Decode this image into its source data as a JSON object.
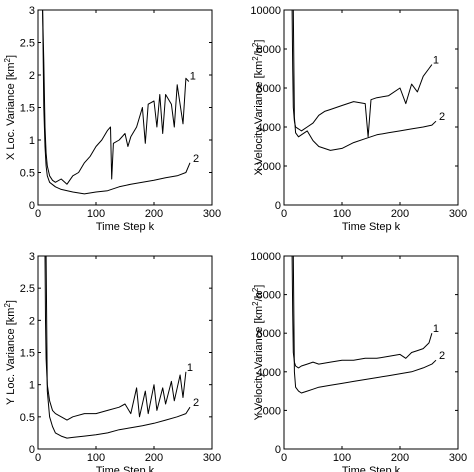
{
  "chart_data": [
    {
      "type": "line",
      "xlabel": "Time Step k",
      "ylabel": "X Loc. Variance [km2]",
      "ylabel_main": "X Loc. Variance [km",
      "ylabel_sup": "2",
      "ylabel_tail": "]",
      "xlim": [
        0,
        300
      ],
      "ylim": [
        0,
        3
      ],
      "xticks": [
        0,
        100,
        200,
        300
      ],
      "yticks": [
        0,
        0.5,
        1,
        1.5,
        2,
        2.5,
        3
      ],
      "xtick_labels": [
        "0",
        "100",
        "200",
        "300"
      ],
      "ytick_labels": [
        "0",
        "0.5",
        "1",
        "1.5",
        "2",
        "2.5",
        "3"
      ],
      "series": [
        {
          "label": "1",
          "x": [
            8,
            10,
            12,
            14,
            16,
            20,
            25,
            30,
            40,
            50,
            60,
            70,
            80,
            90,
            100,
            110,
            120,
            125,
            127,
            130,
            140,
            150,
            155,
            160,
            170,
            180,
            185,
            190,
            200,
            205,
            210,
            215,
            220,
            230,
            235,
            240,
            250,
            255,
            260
          ],
          "y": [
            3.0,
            2.2,
            1.2,
            0.8,
            0.6,
            0.45,
            0.38,
            0.35,
            0.4,
            0.32,
            0.45,
            0.5,
            0.65,
            0.75,
            0.9,
            1.0,
            1.15,
            1.2,
            0.4,
            0.95,
            1.0,
            1.1,
            0.9,
            1.05,
            1.2,
            1.5,
            0.95,
            1.55,
            1.6,
            1.2,
            1.7,
            1.1,
            1.7,
            1.55,
            1.2,
            1.85,
            1.25,
            1.95,
            1.9
          ]
        },
        {
          "label": "2",
          "x": [
            8,
            10,
            12,
            14,
            16,
            20,
            30,
            40,
            60,
            80,
            100,
            120,
            140,
            160,
            180,
            200,
            220,
            240,
            255,
            262
          ],
          "y": [
            3.0,
            1.5,
            0.9,
            0.6,
            0.45,
            0.35,
            0.28,
            0.24,
            0.2,
            0.17,
            0.2,
            0.22,
            0.28,
            0.32,
            0.35,
            0.38,
            0.42,
            0.45,
            0.5,
            0.65
          ]
        }
      ]
    },
    {
      "type": "line",
      "xlabel": "Time Step k",
      "ylabel": "X Velocity Variance [km2/h2]",
      "ylabel_main": "X Velocity Variance [km",
      "ylabel_sup": "2",
      "ylabel_mid": "/h",
      "ylabel_sup2": "2",
      "ylabel_tail": "]",
      "xlim": [
        0,
        300
      ],
      "ylim": [
        0,
        10000
      ],
      "xticks": [
        0,
        100,
        200,
        300
      ],
      "yticks": [
        0,
        2000,
        4000,
        6000,
        8000,
        10000
      ],
      "xtick_labels": [
        "0",
        "100",
        "200",
        "300"
      ],
      "ytick_labels": [
        "0",
        "2000",
        "4000",
        "6000",
        "8000",
        "10000"
      ],
      "series": [
        {
          "label": "1",
          "x": [
            14,
            15,
            16,
            18,
            20,
            25,
            30,
            40,
            50,
            60,
            70,
            80,
            100,
            120,
            140,
            145,
            150,
            160,
            180,
            200,
            210,
            220,
            230,
            240,
            250,
            255
          ],
          "y": [
            10000,
            7000,
            5000,
            4300,
            4000,
            3900,
            3800,
            4000,
            4200,
            4600,
            4800,
            4900,
            5100,
            5300,
            5200,
            3500,
            5400,
            5500,
            5600,
            6000,
            5200,
            6200,
            5800,
            6600,
            7000,
            7200
          ]
        },
        {
          "label": "2",
          "x": [
            16,
            18,
            20,
            25,
            30,
            40,
            50,
            60,
            80,
            100,
            120,
            140,
            160,
            180,
            200,
            220,
            240,
            255,
            262
          ],
          "y": [
            10000,
            4500,
            3700,
            3500,
            3600,
            3800,
            3300,
            3000,
            2800,
            2900,
            3200,
            3400,
            3600,
            3700,
            3800,
            3900,
            4000,
            4100,
            4300
          ]
        }
      ]
    },
    {
      "type": "line",
      "xlabel": "Time Step k",
      "ylabel": "Y Loc. Variance [km2]",
      "ylabel_main": "Y Loc. Variance [km",
      "ylabel_sup": "2",
      "ylabel_tail": "]",
      "xlim": [
        0,
        300
      ],
      "ylim": [
        0,
        3
      ],
      "xticks": [
        0,
        100,
        200,
        300
      ],
      "yticks": [
        0,
        0.5,
        1,
        1.5,
        2,
        2.5,
        3
      ],
      "xtick_labels": [
        "0",
        "100",
        "200",
        "300"
      ],
      "ytick_labels": [
        "0",
        "0.5",
        "1",
        "1.5",
        "2",
        "2.5",
        "3"
      ],
      "series": [
        {
          "label": "1",
          "x": [
            12,
            13,
            14,
            16,
            20,
            25,
            30,
            40,
            50,
            60,
            80,
            100,
            120,
            140,
            150,
            160,
            170,
            175,
            185,
            190,
            200,
            205,
            215,
            220,
            230,
            235,
            245,
            250,
            255
          ],
          "y": [
            3.0,
            2.0,
            1.4,
            1.0,
            0.75,
            0.6,
            0.55,
            0.5,
            0.45,
            0.5,
            0.55,
            0.55,
            0.6,
            0.65,
            0.7,
            0.55,
            0.95,
            0.5,
            0.9,
            0.55,
            1.0,
            0.6,
            0.95,
            0.7,
            1.05,
            0.75,
            1.15,
            0.8,
            1.2
          ]
        },
        {
          "label": "2",
          "x": [
            14,
            16,
            20,
            25,
            30,
            40,
            50,
            60,
            80,
            100,
            120,
            140,
            160,
            180,
            200,
            220,
            240,
            255,
            262
          ],
          "y": [
            3.0,
            0.9,
            0.5,
            0.35,
            0.25,
            0.2,
            0.17,
            0.18,
            0.2,
            0.22,
            0.25,
            0.3,
            0.33,
            0.36,
            0.4,
            0.45,
            0.5,
            0.55,
            0.65
          ]
        }
      ]
    },
    {
      "type": "line",
      "xlabel": "Time Step k",
      "ylabel": "Y Velocity Variance [km2/h2]",
      "ylabel_main": "Y Velocity Variance [km",
      "ylabel_sup": "2",
      "ylabel_mid": "/h",
      "ylabel_sup2": "2",
      "ylabel_tail": "]",
      "xlim": [
        0,
        300
      ],
      "ylim": [
        0,
        10000
      ],
      "xticks": [
        0,
        100,
        200,
        300
      ],
      "yticks": [
        0,
        2000,
        4000,
        6000,
        8000,
        10000
      ],
      "xtick_labels": [
        "0",
        "100",
        "200",
        "300"
      ],
      "ytick_labels": [
        "0",
        "2000",
        "4000",
        "6000",
        "8000",
        "10000"
      ],
      "series": [
        {
          "label": "1",
          "x": [
            14,
            15,
            16,
            18,
            20,
            25,
            30,
            40,
            50,
            60,
            80,
            100,
            120,
            140,
            160,
            180,
            200,
            210,
            220,
            230,
            240,
            250,
            255
          ],
          "y": [
            10000,
            7000,
            5000,
            4500,
            4300,
            4200,
            4300,
            4400,
            4500,
            4400,
            4500,
            4600,
            4600,
            4700,
            4700,
            4800,
            4900,
            4700,
            5000,
            5100,
            5200,
            5500,
            6000
          ]
        },
        {
          "label": "2",
          "x": [
            16,
            18,
            20,
            25,
            30,
            40,
            50,
            60,
            80,
            100,
            120,
            140,
            160,
            180,
            200,
            220,
            240,
            255,
            262
          ],
          "y": [
            10000,
            4000,
            3200,
            3000,
            2900,
            3000,
            3100,
            3200,
            3300,
            3400,
            3500,
            3600,
            3700,
            3800,
            3900,
            4000,
            4200,
            4400,
            4600
          ]
        }
      ]
    }
  ]
}
